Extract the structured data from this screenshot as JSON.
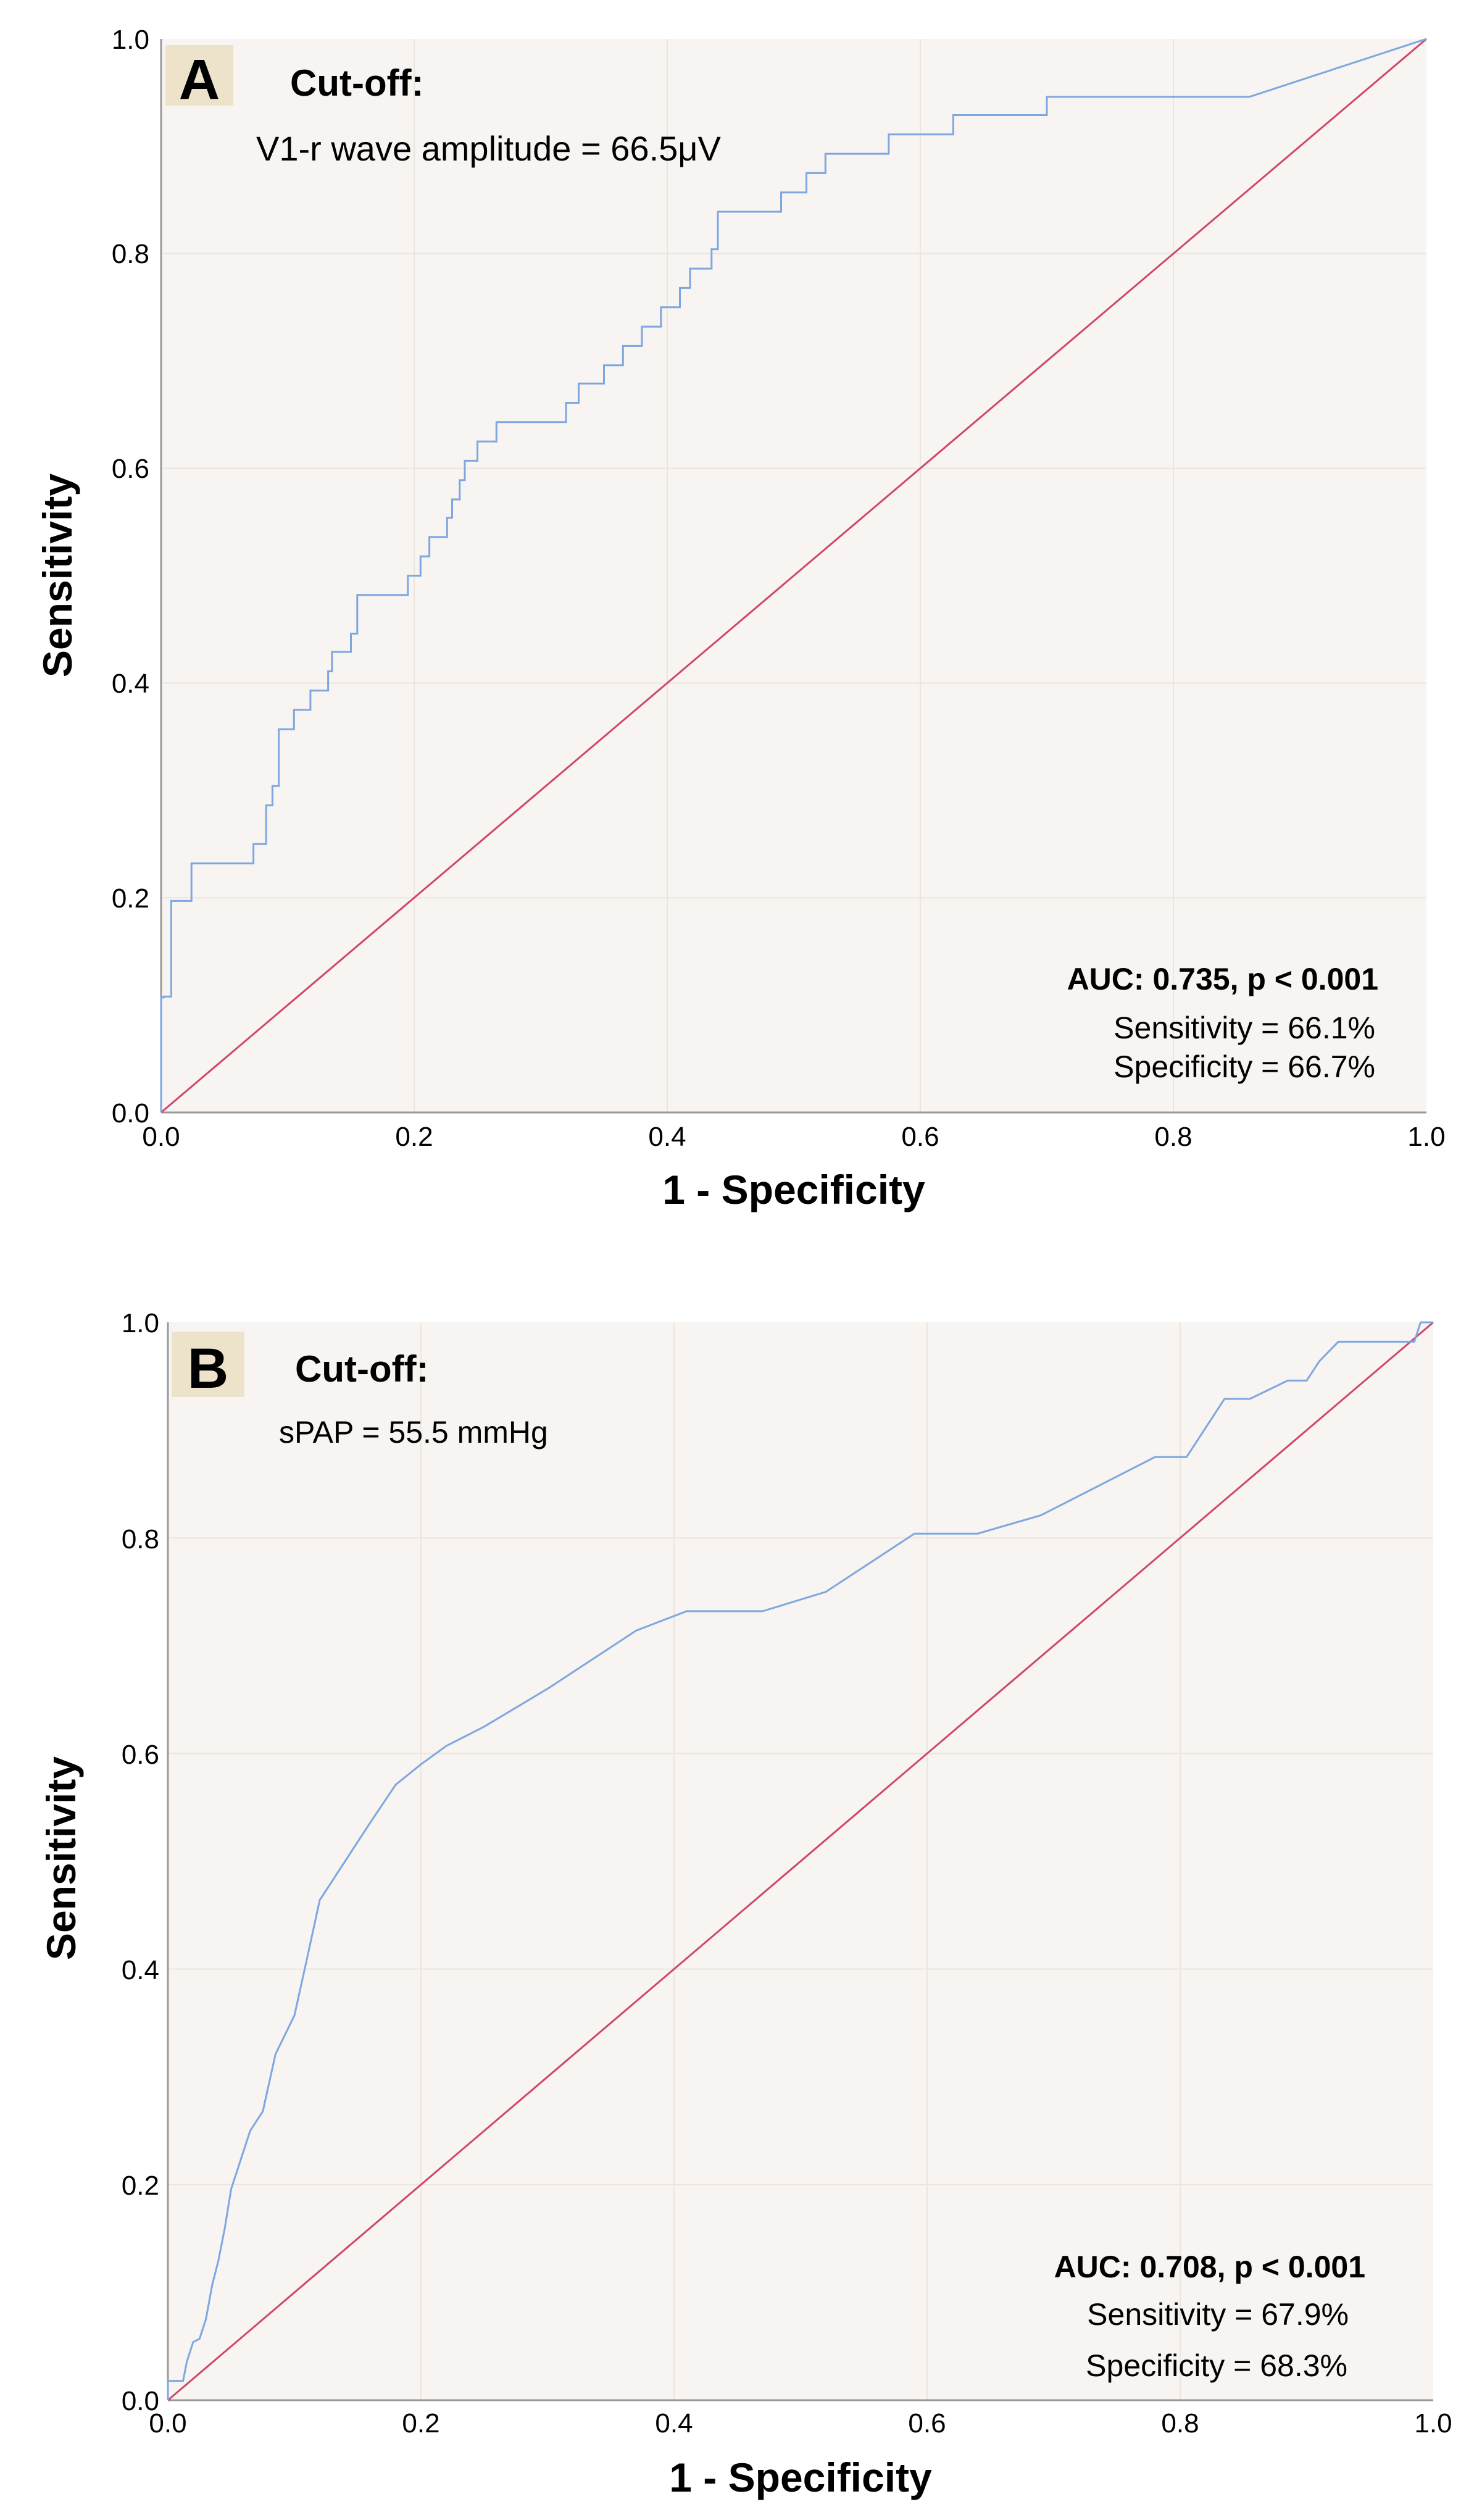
{
  "chart_data": [
    {
      "type": "line",
      "panel_label": "A",
      "xlabel": "1 - Specificity",
      "ylabel": "Sensitivity",
      "xlim": [
        0,
        1
      ],
      "ylim": [
        0,
        1
      ],
      "x_ticks": [
        "0.0",
        "0.2",
        "0.4",
        "0.6",
        "0.8",
        "1.0"
      ],
      "y_ticks": [
        "0.0",
        "0.2",
        "0.4",
        "0.6",
        "0.8",
        "1.0"
      ],
      "cutoff_title": "Cut-off:",
      "cutoff_value": "V1-r wave amplitude = 66.5μV",
      "auc_text": "AUC: 0.735, p < 0.001",
      "sensitivity_text": "Sensitivity = 66.1%",
      "specificity_text": "Specificity = 66.7%",
      "colors": {
        "roc": "#7ea7e0",
        "reference": "#d0466a",
        "background": "#f7f4f2"
      },
      "series": [
        {
          "name": "ROC curve",
          "x": [
            0,
            0,
            0.002,
            0.002,
            0.008,
            0.008,
            0.024,
            0.024,
            0.073,
            0.073,
            0.083,
            0.083,
            0.088,
            0.088,
            0.093,
            0.093,
            0.105,
            0.105,
            0.118,
            0.118,
            0.132,
            0.132,
            0.135,
            0.135,
            0.15,
            0.15,
            0.155,
            0.155,
            0.195,
            0.195,
            0.205,
            0.205,
            0.212,
            0.212,
            0.226,
            0.226,
            0.23,
            0.23,
            0.236,
            0.236,
            0.24,
            0.24,
            0.25,
            0.25,
            0.257,
            0.257,
            0.265,
            0.265,
            0.32,
            0.32,
            0.33,
            0.33,
            0.343,
            0.343,
            0.35,
            0.35,
            0.365,
            0.365,
            0.38,
            0.38,
            0.395,
            0.395,
            0.41,
            0.41,
            0.418,
            0.418,
            0.43,
            0.43,
            0.435,
            0.435,
            0.44,
            0.44,
            0.46,
            0.46,
            0.46,
            0.46,
            0.49,
            0.49,
            0.51,
            0.51,
            0.525,
            0.525,
            0.525,
            0.525,
            0.575,
            0.575,
            0.575,
            0.575,
            0.6,
            0.6,
            0.626,
            0.626,
            0.7,
            0.7,
            0.712,
            0.712,
            0.775,
            0.775,
            0.86,
            1.0
          ],
          "y": [
            0,
            0.107,
            0.107,
            0.108,
            0.108,
            0.197,
            0.197,
            0.232,
            0.232,
            0.25,
            0.25,
            0.286,
            0.286,
            0.304,
            0.304,
            0.357,
            0.357,
            0.375,
            0.375,
            0.393,
            0.393,
            0.411,
            0.411,
            0.429,
            0.429,
            0.446,
            0.446,
            0.482,
            0.482,
            0.5,
            0.5,
            0.518,
            0.518,
            0.536,
            0.536,
            0.554,
            0.554,
            0.571,
            0.571,
            0.589,
            0.589,
            0.607,
            0.607,
            0.625,
            0.625,
            0.625,
            0.625,
            0.643,
            0.643,
            0.661,
            0.661,
            0.679,
            0.679,
            0.679,
            0.679,
            0.696,
            0.696,
            0.714,
            0.714,
            0.732,
            0.732,
            0.75,
            0.75,
            0.768,
            0.768,
            0.786,
            0.786,
            0.786,
            0.786,
            0.804,
            0.804,
            0.839,
            0.839,
            0.839,
            0.839,
            0.839,
            0.839,
            0.857,
            0.857,
            0.875,
            0.875,
            0.875,
            0.875,
            0.893,
            0.893,
            0.893,
            0.893,
            0.911,
            0.911,
            0.911,
            0.911,
            0.929,
            0.929,
            0.946,
            0.946,
            0.946,
            0.946,
            0.946,
            0.946,
            1.0
          ]
        },
        {
          "name": "Reference line",
          "x": [
            0,
            1
          ],
          "y": [
            0,
            1
          ]
        }
      ]
    },
    {
      "type": "line",
      "panel_label": "B",
      "xlabel": "1 - Specificity",
      "ylabel": "Sensitivity",
      "xlim": [
        0,
        1
      ],
      "ylim": [
        0,
        1
      ],
      "x_ticks": [
        "0.0",
        "0.2",
        "0.4",
        "0.6",
        "0.8",
        "1.0"
      ],
      "y_ticks": [
        "0.0",
        "0.2",
        "0.4",
        "0.6",
        "0.8",
        "1.0"
      ],
      "cutoff_title": "Cut-off:",
      "cutoff_value": "sPAP = 55.5 mmHg",
      "auc_text": "AUC: 0.708, p < 0.001",
      "sensitivity_text": "Sensitivity = 67.9%",
      "specificity_text": "Specificity = 68.3%",
      "colors": {
        "roc": "#7ea7e0",
        "reference": "#d0466a",
        "background": "#f7f4f2"
      },
      "series": [
        {
          "name": "ROC curve",
          "x": [
            0,
            0,
            0.012,
            0.015,
            0.02,
            0.025,
            0.03,
            0.035,
            0.04,
            0.045,
            0.05,
            0.055,
            0.065,
            0.075,
            0.085,
            0.1,
            0.11,
            0.12,
            0.14,
            0.16,
            0.18,
            0.2,
            0.22,
            0.25,
            0.3,
            0.37,
            0.41,
            0.47,
            0.52,
            0.555,
            0.59,
            0.64,
            0.69,
            0.75,
            0.78,
            0.805,
            0.835,
            0.855,
            0.885,
            0.9,
            0.91,
            0.925,
            0.985,
            0.99,
            1.0
          ],
          "y": [
            0,
            0.018,
            0.018,
            0.036,
            0.054,
            0.057,
            0.075,
            0.107,
            0.13,
            0.16,
            0.196,
            0.214,
            0.25,
            0.268,
            0.321,
            0.357,
            0.41,
            0.464,
            0.5,
            0.536,
            0.571,
            0.59,
            0.607,
            0.625,
            0.66,
            0.714,
            0.732,
            0.732,
            0.75,
            0.777,
            0.804,
            0.804,
            0.821,
            0.857,
            0.875,
            0.875,
            0.929,
            0.929,
            0.946,
            0.946,
            0.964,
            0.982,
            0.982,
            1.0,
            1.0
          ]
        },
        {
          "name": "Reference line",
          "x": [
            0,
            1
          ],
          "y": [
            0,
            1
          ]
        }
      ]
    }
  ]
}
